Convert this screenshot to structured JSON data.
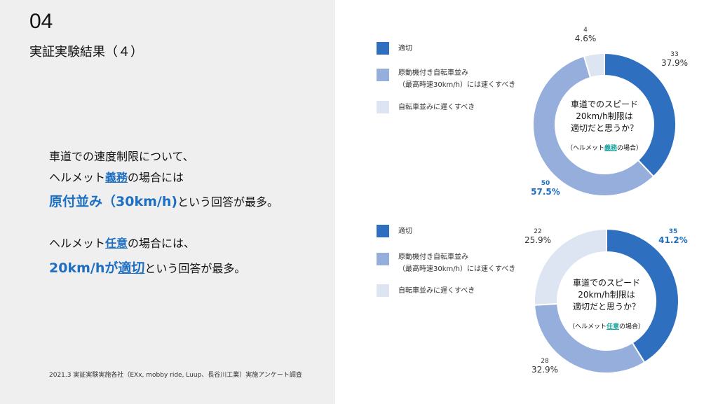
{
  "slide": {
    "number": "04",
    "title": "実証実験結果（４）",
    "para1_line1": "車道での速度制限について、",
    "para1_line2a": "ヘルメット",
    "para1_line2b": "義務",
    "para1_line2c": "の場合には",
    "para1_line3a": "原付並み（30km/h)",
    "para1_line3b": "という回答が最多。",
    "para2_line1a": "ヘルメット",
    "para2_line1b": "任意",
    "para2_line1c": "の場合には、",
    "para2_line2a": "20km/hが",
    "para2_line2b": "適切",
    "para2_line2c": "という回答が最多。",
    "note": "2021.3 実証実験実施各社（EXx, mobby ride, Luup、長谷川工業）実施アンケート調査"
  },
  "legend": {
    "item1": "適切",
    "item2a": "原動機付き自転車並み",
    "item2b": "（最高時速30km/h）には速くすべき",
    "item3": "自転車並みに遅くすべき"
  },
  "colors": {
    "c1": "#2f6fc0",
    "c2": "#96aedc",
    "c3": "#dde5f3",
    "accent": "#1e6fc2"
  },
  "chart_data": [
    {
      "type": "pie",
      "center_line1": "車道でのスピード",
      "center_line2": "20km/h制限は",
      "center_line3": "適切だと思うか？",
      "sub_a": "（ヘルメット",
      "sub_b": "義務",
      "sub_c": "の場合）",
      "categories": [
        "適切",
        "原動機付き自転車並み（最高時速30km/h）には速くすべき",
        "自転車並みに遅くすべき"
      ],
      "values": [
        33,
        50,
        4
      ],
      "percents": [
        "37.9%",
        "57.5%",
        "4.6%"
      ]
    },
    {
      "type": "pie",
      "center_line1": "車道でのスピード",
      "center_line2": "20km/h制限は",
      "center_line3": "適切だと思うか？",
      "sub_a": "（ヘルメット",
      "sub_b": "任意",
      "sub_c": "の場合）",
      "categories": [
        "適切",
        "原動機付き自転車並み（最高時速30km/h）には速くすべき",
        "自転車並みに遅くすべき"
      ],
      "values": [
        35,
        28,
        22
      ],
      "percents": [
        "41.2%",
        "32.9%",
        "25.9%"
      ]
    }
  ]
}
